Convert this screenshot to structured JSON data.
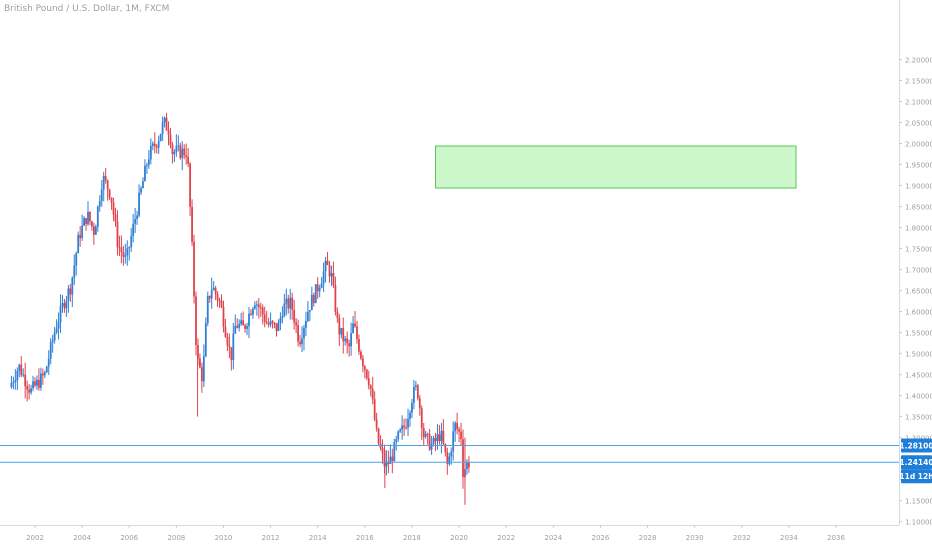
{
  "chart_data": {
    "type": "candlestick",
    "title": "British Pound / U.S. Dollar, 1M, FXCM",
    "x_axis": {
      "ticks": [
        "2002",
        "2004",
        "2006",
        "2008",
        "2010",
        "2012",
        "2014",
        "2016",
        "2018",
        "2020",
        "2022",
        "2024",
        "2026",
        "2028",
        "2030",
        "2032",
        "2034",
        "2036"
      ]
    },
    "y_axis": {
      "position": "right",
      "ylim": [
        1.085,
        2.23
      ],
      "ticks": [
        "2.20000",
        "2.15000",
        "2.10000",
        "2.05000",
        "2.00000",
        "1.95000",
        "1.90000",
        "1.85000",
        "1.80000",
        "1.75000",
        "1.70000",
        "1.65000",
        "1.60000",
        "1.55000",
        "1.50000",
        "1.45000",
        "1.40000",
        "1.35000",
        "1.30000",
        "1.25000",
        "1.20000",
        "1.15000",
        "1.10000"
      ]
    },
    "grid": false,
    "colors": {
      "up": "#2e7fd6",
      "down": "#e0424c",
      "hline": "#4aa3e8",
      "zone_fill": "#ccf7c9",
      "zone_border": "#5fc25a",
      "label_bg": "#1f7ed8"
    },
    "price_lines": [
      {
        "value": 1.281,
        "label": "1.28100"
      },
      {
        "value": 1.2414,
        "label": "1.24140"
      }
    ],
    "countdown_label": "11d 12h",
    "zone": {
      "x_from": 2019.0,
      "x_to": 2034.3,
      "y_from": 1.894,
      "y_to": 1.994
    },
    "anchors": [
      [
        2001.0,
        1.42
      ],
      [
        2001.4,
        1.47
      ],
      [
        2001.9,
        1.41
      ],
      [
        2002.5,
        1.45
      ],
      [
        2002.95,
        1.56
      ],
      [
        2003.3,
        1.62
      ],
      [
        2003.6,
        1.66
      ],
      [
        2003.95,
        1.78
      ],
      [
        2004.3,
        1.83
      ],
      [
        2004.6,
        1.79
      ],
      [
        2004.95,
        1.92
      ],
      [
        2005.3,
        1.88
      ],
      [
        2005.6,
        1.76
      ],
      [
        2005.95,
        1.72
      ],
      [
        2006.4,
        1.84
      ],
      [
        2006.9,
        1.97
      ],
      [
        2007.3,
        2.01
      ],
      [
        2007.55,
        2.05
      ],
      [
        2007.8,
        2.03
      ],
      [
        2007.9,
        1.98
      ],
      [
        2008.3,
        1.98
      ],
      [
        2008.55,
        1.98
      ],
      [
        2008.75,
        1.75
      ],
      [
        2008.95,
        1.49
      ],
      [
        2009.2,
        1.44
      ],
      [
        2009.4,
        1.62
      ],
      [
        2009.6,
        1.66
      ],
      [
        2009.95,
        1.62
      ],
      [
        2010.4,
        1.49
      ],
      [
        2010.6,
        1.57
      ],
      [
        2010.95,
        1.56
      ],
      [
        2011.4,
        1.63
      ],
      [
        2011.7,
        1.6
      ],
      [
        2011.95,
        1.57
      ],
      [
        2012.4,
        1.56
      ],
      [
        2012.6,
        1.61
      ],
      [
        2012.95,
        1.62
      ],
      [
        2013.3,
        1.53
      ],
      [
        2013.7,
        1.61
      ],
      [
        2014.1,
        1.66
      ],
      [
        2014.45,
        1.71
      ],
      [
        2014.65,
        1.69
      ],
      [
        2014.95,
        1.56
      ],
      [
        2015.4,
        1.51
      ],
      [
        2015.6,
        1.57
      ],
      [
        2015.95,
        1.49
      ],
      [
        2016.3,
        1.43
      ],
      [
        2016.6,
        1.3
      ],
      [
        2016.95,
        1.23
      ],
      [
        2017.2,
        1.25
      ],
      [
        2017.5,
        1.3
      ],
      [
        2017.8,
        1.33
      ],
      [
        2018.1,
        1.4
      ],
      [
        2018.3,
        1.42
      ],
      [
        2018.6,
        1.3
      ],
      [
        2018.95,
        1.28
      ],
      [
        2019.3,
        1.31
      ],
      [
        2019.6,
        1.23
      ],
      [
        2019.9,
        1.33
      ],
      [
        2020.2,
        1.3
      ],
      [
        2020.25,
        1.22
      ],
      [
        2020.45,
        1.24
      ]
    ]
  }
}
